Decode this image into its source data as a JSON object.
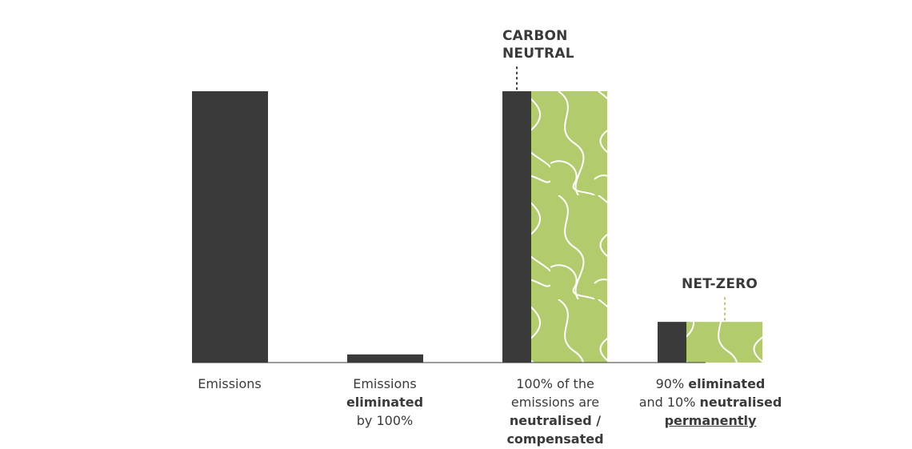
{
  "chart_data": {
    "type": "bar",
    "categories": [
      "Emissions",
      "Emissions eliminated by 100%",
      "100% of the emissions are neutralised / compensated",
      "90% eliminated and 10% neutralised permanently"
    ],
    "series": [
      {
        "values": [
          100,
          3,
          100,
          15
        ],
        "color": "#3a3a3a"
      },
      {
        "values": [
          0,
          0,
          100,
          15
        ],
        "color": "#b2cc6d"
      }
    ],
    "ylim": [
      0,
      100
    ],
    "grid": false,
    "annotations": [
      {
        "text": "CARBON NEUTRAL",
        "category": 2,
        "lines": [
          "CARBON",
          "NEUTRAL"
        ],
        "line_color": "#3a3a3a"
      },
      {
        "text": "NET-ZERO",
        "category": 3,
        "lines": [
          "NET-ZERO"
        ],
        "line_color": "#b2cc6d"
      }
    ],
    "labels": [
      {
        "parts": [
          [
            {
              "t": "Emissions",
              "s": "n"
            }
          ]
        ]
      },
      {
        "parts": [
          [
            {
              "t": "Emissions",
              "s": "n"
            }
          ],
          [
            {
              "t": "eliminated",
              "s": "b"
            }
          ],
          [
            {
              "t": "by 100%",
              "s": "n"
            }
          ]
        ]
      },
      {
        "parts": [
          [
            {
              "t": "100% of the",
              "s": "n"
            }
          ],
          [
            {
              "t": "emissions are",
              "s": "n"
            }
          ],
          [
            {
              "t": "neutralised /",
              "s": "b"
            }
          ],
          [
            {
              "t": "compensated",
              "s": "b"
            }
          ]
        ]
      },
      {
        "parts": [
          [
            {
              "t": "90% ",
              "s": "n"
            },
            {
              "t": "eliminated",
              "s": "b"
            }
          ],
          [
            {
              "t": "and 10% ",
              "s": "n"
            },
            {
              "t": "neutralised",
              "s": "b"
            }
          ],
          [
            {
              "t": "permanently",
              "s": "u"
            }
          ]
        ]
      }
    ]
  }
}
